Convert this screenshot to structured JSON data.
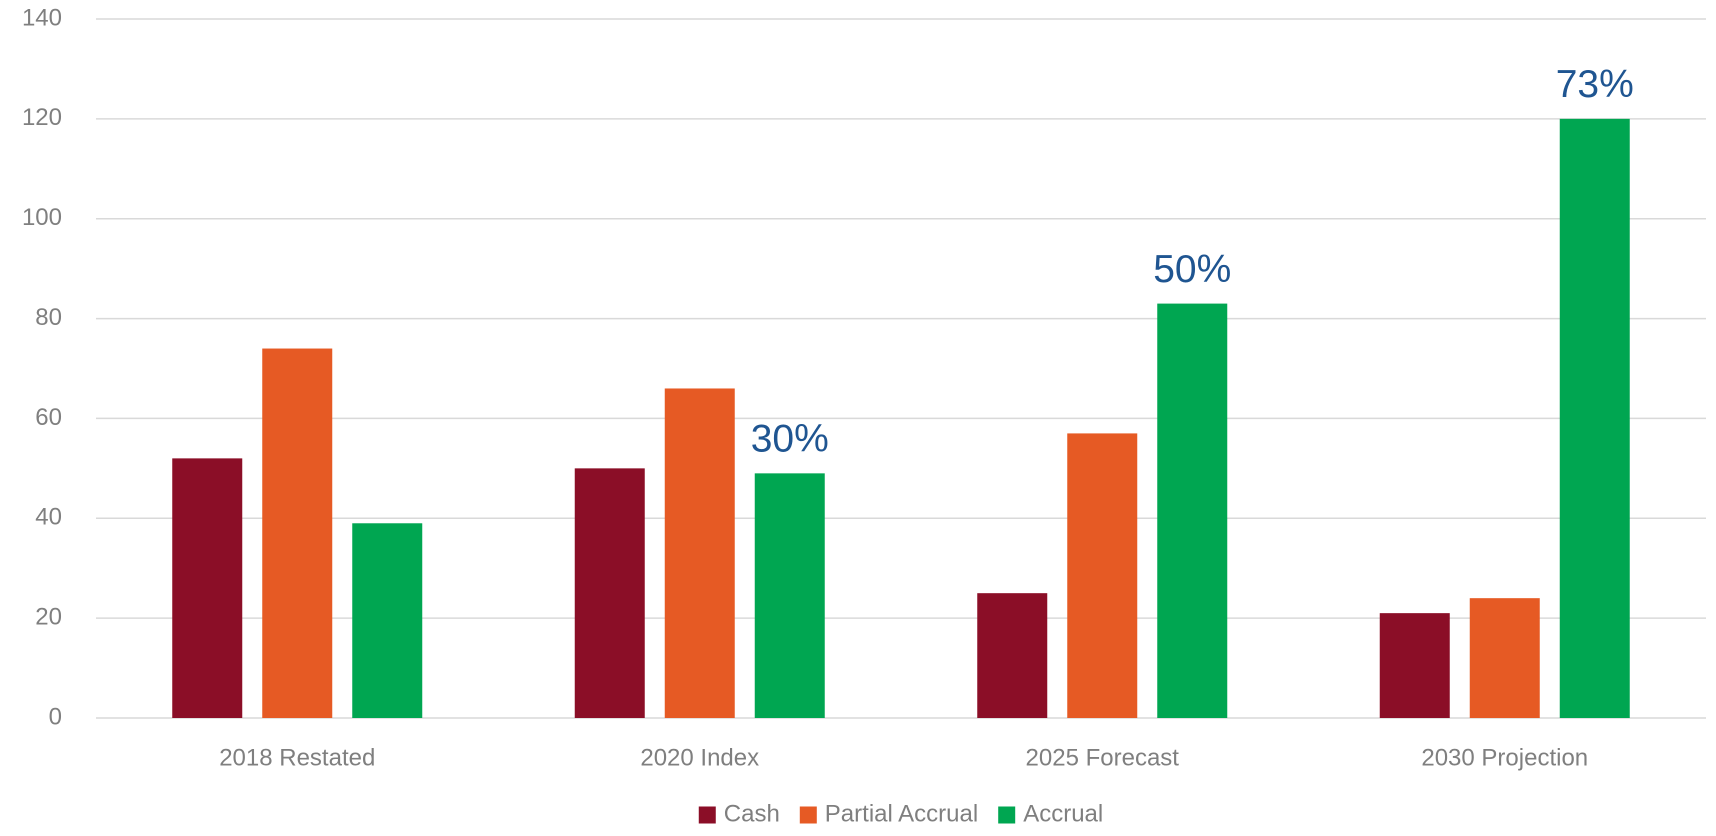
{
  "chart_data": {
    "type": "bar",
    "categories": [
      "2018 Restated",
      "2020 Index",
      "2025 Forecast",
      "2030 Projection"
    ],
    "series": [
      {
        "name": "Cash",
        "color": "#8b0e27",
        "values": [
          52,
          50,
          25,
          21
        ]
      },
      {
        "name": "Partial Accrual",
        "color": "#e65a24",
        "values": [
          74,
          66,
          57,
          24
        ]
      },
      {
        "name": "Accrual",
        "color": "#00a651",
        "values": [
          39,
          49,
          83,
          120
        ],
        "annotations": [
          null,
          "30%",
          "50%",
          "73%"
        ]
      }
    ],
    "ylim": [
      0,
      140
    ],
    "yticks": [
      0,
      20,
      40,
      60,
      80,
      100,
      120,
      140
    ],
    "grid": true,
    "legend": "bottom"
  }
}
